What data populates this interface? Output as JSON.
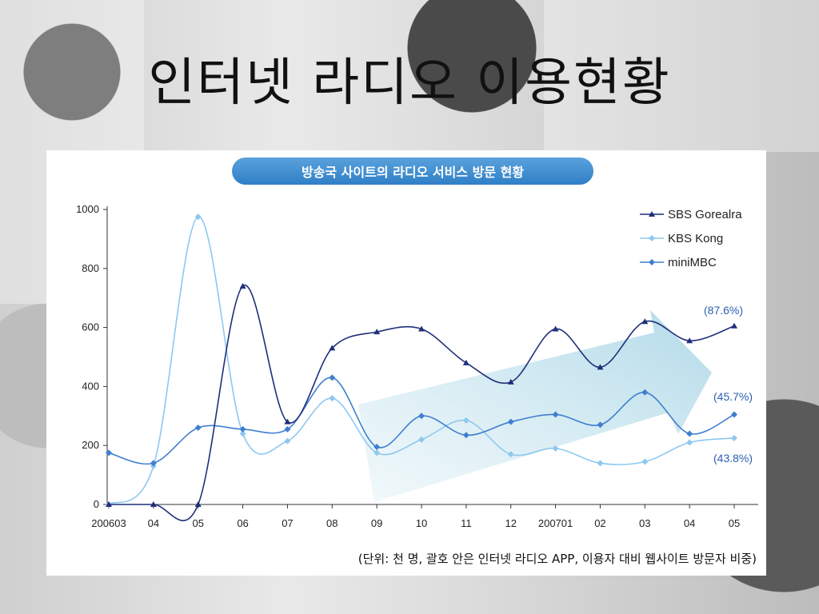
{
  "slide": {
    "title": "인터넷 라디오 이용현황"
  },
  "chart_data": {
    "type": "line",
    "title": "방송국 사이트의 라디오 서비스 방문 현황",
    "categories": [
      "200603",
      "04",
      "05",
      "06",
      "07",
      "08",
      "09",
      "10",
      "11",
      "12",
      "200701",
      "02",
      "03",
      "04",
      "05"
    ],
    "ylim": [
      0,
      1000
    ],
    "yticks": [
      0,
      200,
      400,
      600,
      800,
      1000
    ],
    "series": [
      {
        "name": "SBS Gorealra",
        "color": "#1f2f7a",
        "marker": "triangle",
        "values": [
          0,
          0,
          0,
          740,
          280,
          530,
          585,
          595,
          480,
          415,
          595,
          465,
          620,
          555,
          605
        ]
      },
      {
        "name": "KBS Kong",
        "color": "#8ec8ef",
        "marker": "diamond",
        "values": [
          0,
          130,
          975,
          240,
          215,
          360,
          175,
          220,
          285,
          170,
          190,
          140,
          145,
          210,
          225
        ]
      },
      {
        "name": "miniMBC",
        "color": "#3f7fd0",
        "marker": "diamond",
        "values": [
          175,
          140,
          260,
          255,
          255,
          430,
          195,
          300,
          235,
          280,
          305,
          270,
          380,
          240,
          305
        ]
      }
    ],
    "annotations": [
      "(87.6%)",
      "(45.7%)",
      "(43.8%)"
    ],
    "legend_position": "top-right",
    "grid": false,
    "footnote": "(단위: 천 명, 괄호 안은 인터넷 라디오 APP, 이용자 대비 웹사이트 방문자 비중)"
  }
}
